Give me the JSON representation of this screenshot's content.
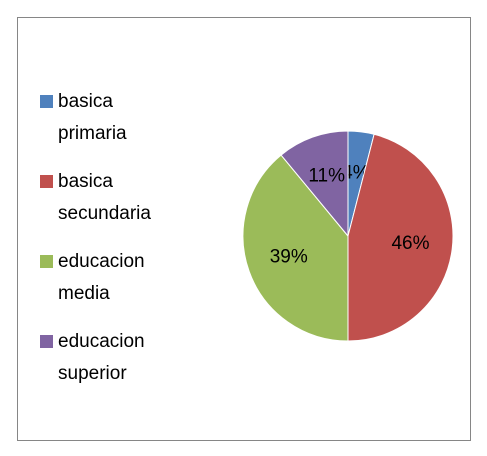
{
  "chart_data": {
    "type": "pie",
    "categories": [
      "basica primaria",
      "basica secundaria",
      "educacion media",
      "educacion superior"
    ],
    "values": [
      4,
      46,
      39,
      11
    ],
    "value_labels": [
      "4%",
      "46%",
      "39%",
      "11%"
    ],
    "colors": [
      "#4f81bd",
      "#c0504d",
      "#9bbb59",
      "#8064a2"
    ],
    "legend": "left"
  }
}
